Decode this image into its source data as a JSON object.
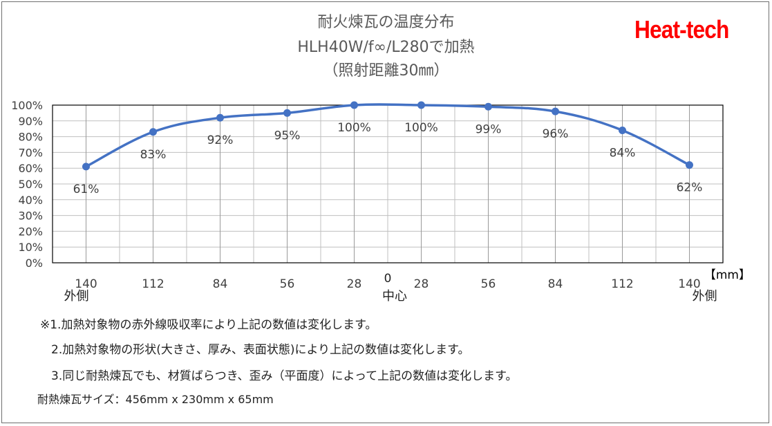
{
  "title": {
    "line1": "耐火煉瓦の温度分布",
    "line2": "HLH40W/f∞/L280で加熱",
    "line3": "（照射距離30㎜）"
  },
  "brand": "Heat-tech",
  "chart_data": {
    "type": "line",
    "x": [
      "140",
      "112",
      "84",
      "56",
      "28",
      "28",
      "56",
      "84",
      "112",
      "140"
    ],
    "x_center_label": "0",
    "x_side_labels": {
      "left": "外側",
      "center": "中心",
      "right": "外側"
    },
    "xlabel_unit": "【mm】",
    "series": [
      {
        "values": [
          61,
          83,
          92,
          95,
          100,
          100,
          99,
          96,
          84,
          62
        ]
      }
    ],
    "data_labels": [
      "61%",
      "83%",
      "92%",
      "95%",
      "100%",
      "100%",
      "99%",
      "96%",
      "84%",
      "62%"
    ],
    "y_ticks": [
      "0%",
      "10%",
      "20%",
      "30%",
      "40%",
      "50%",
      "60%",
      "70%",
      "80%",
      "90%",
      "100%"
    ],
    "ylim": [
      0,
      100
    ],
    "grid": true,
    "line_color": "#4472c4"
  },
  "notes": {
    "n1": "※1.加熱対象物の赤外線吸収率により上記の数値は変化します。",
    "n2": "2.加熱対象物の形状(大きさ、厚み、表面状態)により上記の数値は変化します。",
    "n3": "3.同じ耐熱煉瓦でも、材質ばらつき、歪み（平面度）によって上記の数値は変化します。",
    "size": "耐熱煉瓦サイズ：456mm x 230mm x 65mm"
  }
}
